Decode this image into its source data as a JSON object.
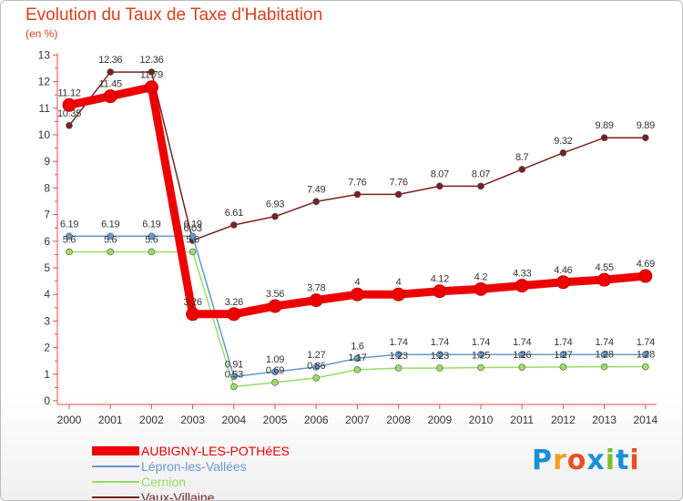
{
  "title": "Evolution du Taux de Taxe d'Habitation",
  "subtitle": "(en %)",
  "logo": {
    "text": "Proxiti",
    "letters": [
      "P",
      "r",
      "o",
      "x",
      "i",
      "t",
      "i"
    ],
    "colors": [
      "#1a8fd6",
      "#f0a020",
      "#e8501e",
      "#1a8fd6",
      "#7cbf2a",
      "#1a8fd6",
      "#e8501e"
    ]
  },
  "chart_data": {
    "type": "line",
    "x": [
      "2000",
      "2001",
      "2002",
      "2003",
      "2004",
      "2005",
      "2006",
      "2007",
      "2008",
      "2009",
      "2010",
      "2011",
      "2012",
      "2013",
      "2014"
    ],
    "y_ticks": [
      "0",
      "1",
      "2",
      "3",
      "4",
      "5",
      "6",
      "7",
      "8",
      "9",
      "10",
      "11",
      "12",
      "13"
    ],
    "ylim": [
      0,
      13
    ],
    "grid": false,
    "legend_position": "bottom-left",
    "series": [
      {
        "name": "Vaux-Villaine",
        "color": "#7a2020",
        "values": [
          10.35,
          12.36,
          12.36,
          6.03,
          6.61,
          6.93,
          7.49,
          7.76,
          7.76,
          8.07,
          8.07,
          8.7,
          9.32,
          9.89,
          9.89
        ],
        "labels": [
          "10.35",
          "12.36",
          "12.36",
          "6.03",
          "6.61",
          "6.93",
          "7.49",
          "7.76",
          "7.76",
          "8.07",
          "8.07",
          "8.7",
          "9.32",
          "9.89",
          "9.89"
        ]
      },
      {
        "name": "Lépron-les-Vallées",
        "color": "#6699cc",
        "values": [
          6.19,
          6.19,
          6.19,
          6.19,
          0.91,
          1.09,
          1.27,
          1.6,
          1.74,
          1.74,
          1.74,
          1.74,
          1.74,
          1.74,
          1.74
        ],
        "labels": [
          "6.19",
          "6.19",
          "6.19",
          "6.19",
          "0.91",
          "1.09",
          "1.27",
          "1.6",
          "1.74",
          "1.74",
          "1.74",
          "1.74",
          "1.74",
          "1.74",
          "1.74"
        ]
      },
      {
        "name": "Cernion",
        "color": "#99dd66",
        "values": [
          5.6,
          5.6,
          5.6,
          5.6,
          0.53,
          0.69,
          0.86,
          1.17,
          1.23,
          1.23,
          1.25,
          1.26,
          1.27,
          1.28,
          1.28
        ],
        "labels": [
          "5.6",
          "5.6",
          "5.6",
          "5.6",
          "0.53",
          "0.69",
          "0.86",
          "1.17",
          "1.23",
          "1.23",
          "1.25",
          "1.26",
          "1.27",
          "1.28",
          "1.28"
        ]
      },
      {
        "name": "AUBIGNY-LES-POTHéES",
        "color": "#ee0000",
        "values": [
          11.12,
          11.45,
          11.79,
          3.26,
          3.26,
          3.56,
          3.78,
          4,
          4,
          4.12,
          4.2,
          4.33,
          4.46,
          4.55,
          4.69
        ],
        "labels": [
          "11.12",
          "11.45",
          "11.79",
          "3.26",
          "3.26",
          "3.56",
          "3.78",
          "4",
          "4",
          "4.12",
          "4.2",
          "4.33",
          "4.46",
          "4.55",
          "4.69"
        ]
      }
    ]
  },
  "legend": [
    {
      "label": "AUBIGNY-LES-POTHéES",
      "color": "#ee0000",
      "width": 10
    },
    {
      "label": "Lépron-les-Vallées",
      "color": "#6699cc",
      "width": 2
    },
    {
      "label": "Cernion",
      "color": "#99dd66",
      "width": 2
    },
    {
      "label": "Vaux-Villaine",
      "color": "#7a2020",
      "width": 2
    }
  ]
}
